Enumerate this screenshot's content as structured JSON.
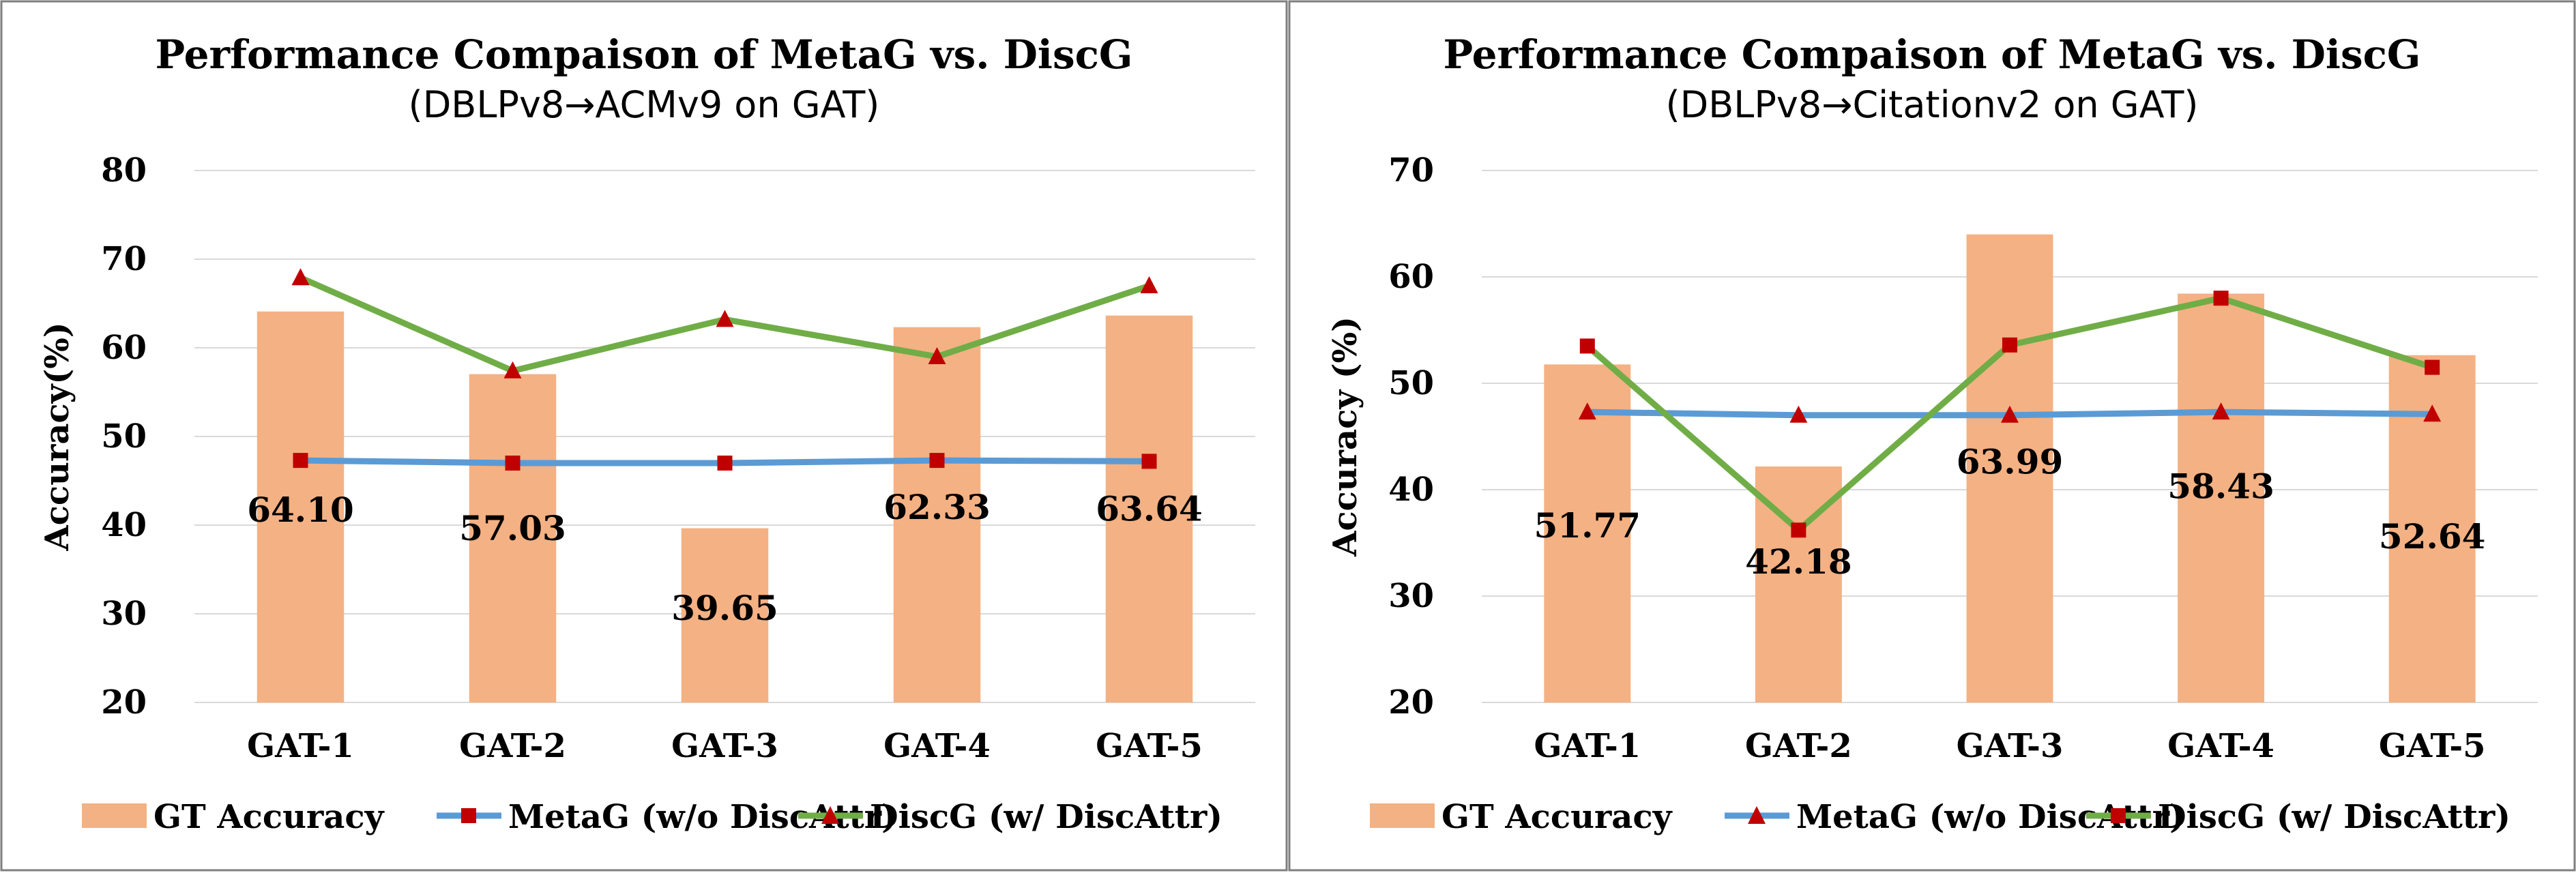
{
  "colors": {
    "bar": "#F4B183",
    "metag": "#5B9BD5",
    "metag_marker": "#C00000",
    "discg": "#70AD47",
    "discg_marker": "#C00000",
    "grid": "#D9D9D9",
    "border": "#7F7F7F"
  },
  "chart_data": [
    {
      "type": "bar",
      "title": "Performance Compaison of MetaG vs. DiscG",
      "subtitle": "(DBLPv8→ACMv9 on GAT)",
      "ylabel": "Accuracy(%)",
      "xlabel": "",
      "ylim": [
        20,
        80
      ],
      "yticks": [
        "20",
        "30",
        "40",
        "50",
        "60",
        "70",
        "80"
      ],
      "grid": true,
      "legend": "bottom",
      "categories": [
        "GAT-1",
        "GAT-2",
        "GAT-3",
        "GAT-4",
        "GAT-5"
      ],
      "series": [
        {
          "name": "GT Accuracy",
          "kind": "bar",
          "values": [
            64.1,
            57.03,
            39.65,
            62.33,
            63.64
          ],
          "labels": [
            "64.10",
            "57.03",
            "39.65",
            "62.33",
            "63.64"
          ]
        },
        {
          "name": "MetaG (w/o DiscAttr)",
          "kind": "line",
          "marker": "square",
          "values": [
            47.3,
            47.0,
            47.0,
            47.3,
            47.2
          ]
        },
        {
          "name": "DiscG (w/ DiscAttr)",
          "kind": "line",
          "marker": "triangle",
          "values": [
            67.9,
            57.4,
            63.2,
            59.0,
            67.0
          ]
        }
      ]
    },
    {
      "type": "bar",
      "title": "Performance Compaison of MetaG vs. DiscG",
      "subtitle": "(DBLPv8→Citationv2  on GAT)",
      "ylabel": "Accuracy (%)",
      "xlabel": "",
      "ylim": [
        20,
        70
      ],
      "yticks": [
        "20",
        "30",
        "40",
        "50",
        "60",
        "70"
      ],
      "grid": true,
      "legend": "bottom",
      "categories": [
        "GAT-1",
        "GAT-2",
        "GAT-3",
        "GAT-4",
        "GAT-5"
      ],
      "series": [
        {
          "name": "GT Accuracy",
          "kind": "bar",
          "values": [
            51.77,
            42.18,
            63.99,
            58.43,
            52.64
          ],
          "labels": [
            "51.77",
            "42.18",
            "63.99",
            "58.43",
            "52.64"
          ]
        },
        {
          "name": "MetaG (w/o DiscAttr)",
          "kind": "line",
          "marker": "triangle",
          "values": [
            47.3,
            47.0,
            47.0,
            47.3,
            47.1
          ]
        },
        {
          "name": "DiscG (w/ DiscAttr)",
          "kind": "line",
          "marker": "square",
          "values": [
            53.5,
            36.2,
            53.6,
            58.0,
            51.5
          ]
        }
      ]
    }
  ]
}
